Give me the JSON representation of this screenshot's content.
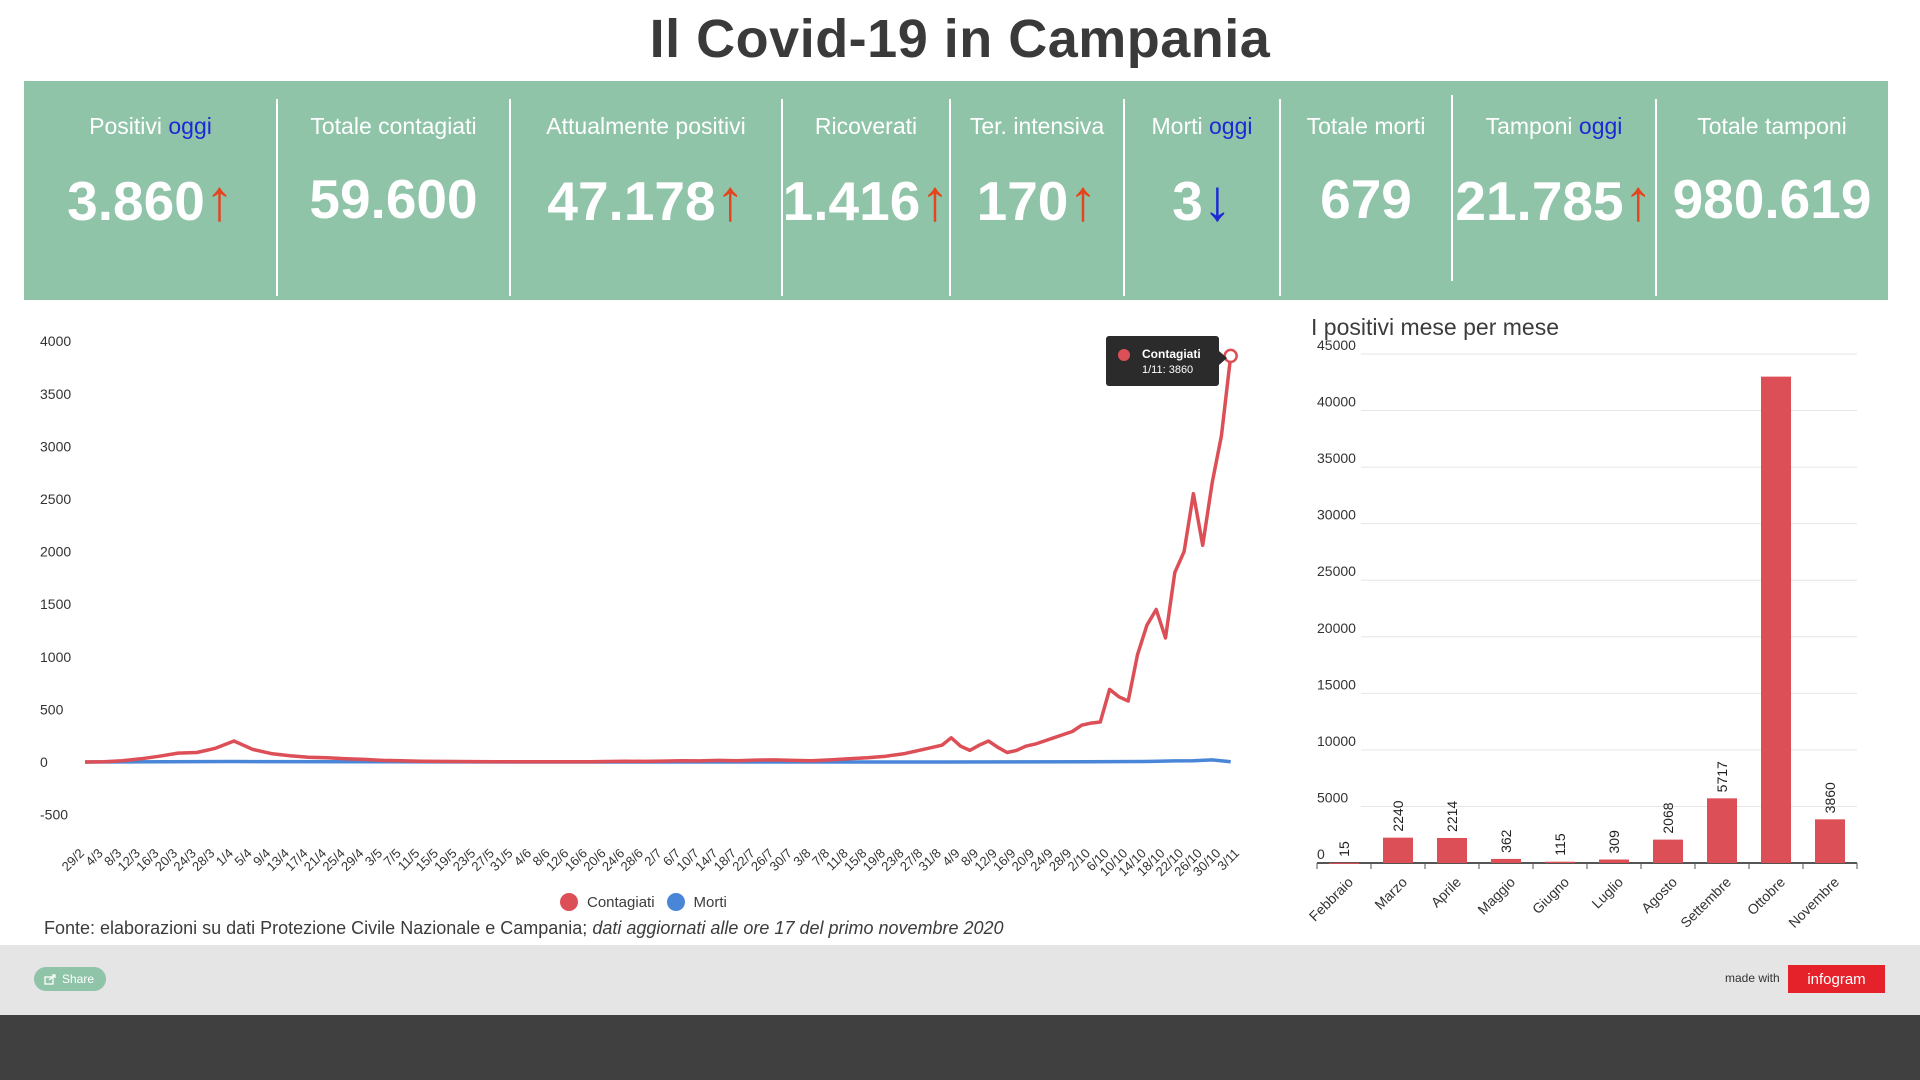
{
  "title": "Il Covid-19 in Campania",
  "kpis": [
    {
      "label": "Positivi ",
      "highlight": "oggi",
      "value": "3.860",
      "arrow": "↑",
      "dir": "up"
    },
    {
      "label": "Totale contagiati",
      "highlight": "",
      "value": "59.600",
      "arrow": "",
      "dir": ""
    },
    {
      "label": "Attualmente positivi",
      "highlight": "",
      "value": "47.178",
      "arrow": "↑",
      "dir": "up"
    },
    {
      "label": "Ricoverati",
      "highlight": "",
      "value": "1.416",
      "arrow": "↑",
      "dir": "up"
    },
    {
      "label": "Ter. intensiva",
      "highlight": "",
      "value": "170",
      "arrow": "↑",
      "dir": "up"
    },
    {
      "label": "Morti ",
      "highlight": "oggi",
      "value": "3",
      "arrow": "↓",
      "dir": "down"
    },
    {
      "label": "Totale morti",
      "highlight": "",
      "value": "679",
      "arrow": "",
      "dir": ""
    },
    {
      "label": "Tamponi ",
      "highlight": "oggi",
      "value": "21.785",
      "arrow": "↑",
      "dir": "up"
    },
    {
      "label": "Totale tamponi",
      "highlight": "",
      "value": "980.619",
      "arrow": "",
      "dir": ""
    }
  ],
  "colors": {
    "band": "#8fc4a8",
    "contagiati": "#dd4f57",
    "morti": "#4a86d8",
    "up_arrow": "#e5441f",
    "down_arrow": "#1d28d6"
  },
  "chart_data": [
    {
      "type": "line",
      "title": "",
      "ylim": [
        -500,
        4000
      ],
      "yticks": [
        4000,
        3500,
        3000,
        2500,
        2000,
        1500,
        1000,
        500,
        0,
        -500
      ],
      "x_ticks": [
        "29/2",
        "4/3",
        "8/3",
        "12/3",
        "16/3",
        "20/3",
        "24/3",
        "28/3",
        "1/4",
        "5/4",
        "9/4",
        "13/4",
        "17/4",
        "21/4",
        "25/4",
        "29/4",
        "3/5",
        "7/5",
        "11/5",
        "15/5",
        "19/5",
        "23/5",
        "27/5",
        "31/5",
        "4/6",
        "8/6",
        "12/6",
        "16/6",
        "20/6",
        "24/6",
        "28/6",
        "2/7",
        "6/7",
        "10/7",
        "14/7",
        "18/7",
        "22/7",
        "26/7",
        "30/7",
        "3/8",
        "7/8",
        "11/8",
        "15/8",
        "19/8",
        "23/8",
        "27/8",
        "31/8",
        "4/9",
        "8/9",
        "12/9",
        "16/9",
        "20/9",
        "24/9",
        "28/9",
        "2/10",
        "6/10",
        "10/10",
        "14/10",
        "18/10",
        "22/10",
        "26/10",
        "30/10",
        "3/11"
      ],
      "series": [
        {
          "name": "Contagiati",
          "points": [
            [
              "29/2",
              0
            ],
            [
              "4/3",
              3
            ],
            [
              "8/3",
              12
            ],
            [
              "12/3",
              30
            ],
            [
              "16/3",
              55
            ],
            [
              "20/3",
              85
            ],
            [
              "24/3",
              90
            ],
            [
              "28/3",
              130
            ],
            [
              "1/4",
              200
            ],
            [
              "3/4",
              160
            ],
            [
              "5/4",
              120
            ],
            [
              "9/4",
              80
            ],
            [
              "13/4",
              60
            ],
            [
              "17/4",
              45
            ],
            [
              "21/4",
              40
            ],
            [
              "25/4",
              30
            ],
            [
              "29/4",
              25
            ],
            [
              "3/5",
              15
            ],
            [
              "7/5",
              12
            ],
            [
              "11/5",
              8
            ],
            [
              "15/5",
              6
            ],
            [
              "19/5",
              5
            ],
            [
              "23/5",
              4
            ],
            [
              "27/5",
              3
            ],
            [
              "31/5",
              3
            ],
            [
              "4/6",
              2
            ],
            [
              "8/6",
              3
            ],
            [
              "12/6",
              2
            ],
            [
              "16/6",
              3
            ],
            [
              "20/6",
              5
            ],
            [
              "24/6",
              8
            ],
            [
              "28/6",
              6
            ],
            [
              "2/7",
              9
            ],
            [
              "6/7",
              12
            ],
            [
              "10/7",
              10
            ],
            [
              "14/7",
              15
            ],
            [
              "18/7",
              12
            ],
            [
              "22/7",
              18
            ],
            [
              "26/7",
              20
            ],
            [
              "30/7",
              15
            ],
            [
              "3/8",
              12
            ],
            [
              "7/8",
              20
            ],
            [
              "11/8",
              30
            ],
            [
              "15/8",
              40
            ],
            [
              "19/8",
              55
            ],
            [
              "23/8",
              80
            ],
            [
              "27/8",
              120
            ],
            [
              "31/8",
              160
            ],
            [
              "2/9",
              230
            ],
            [
              "4/9",
              150
            ],
            [
              "6/9",
              110
            ],
            [
              "8/9",
              160
            ],
            [
              "10/9",
              200
            ],
            [
              "12/9",
              140
            ],
            [
              "14/9",
              90
            ],
            [
              "16/9",
              110
            ],
            [
              "18/9",
              150
            ],
            [
              "20/9",
              170
            ],
            [
              "22/9",
              200
            ],
            [
              "24/9",
              230
            ],
            [
              "26/9",
              260
            ],
            [
              "28/9",
              290
            ],
            [
              "30/9",
              350
            ],
            [
              "2/10",
              370
            ],
            [
              "4/10",
              380
            ],
            [
              "6/10",
              690
            ],
            [
              "8/10",
              620
            ],
            [
              "10/10",
              580
            ],
            [
              "12/10",
              1020
            ],
            [
              "14/10",
              1300
            ],
            [
              "16/10",
              1450
            ],
            [
              "18/10",
              1180
            ],
            [
              "20/10",
              1800
            ],
            [
              "22/10",
              2000
            ],
            [
              "24/10",
              2550
            ],
            [
              "26/10",
              2060
            ],
            [
              "28/10",
              2650
            ],
            [
              "30/10",
              3100
            ],
            [
              "1/11",
              3860
            ]
          ]
        },
        {
          "name": "Morti",
          "points": [
            [
              "29/2",
              0
            ],
            [
              "1/4",
              5
            ],
            [
              "5/4",
              4
            ],
            [
              "1/5",
              2
            ],
            [
              "1/6",
              0
            ],
            [
              "1/7",
              0
            ],
            [
              "1/8",
              0
            ],
            [
              "1/9",
              0
            ],
            [
              "1/10",
              2
            ],
            [
              "15/10",
              6
            ],
            [
              "20/10",
              10
            ],
            [
              "24/10",
              12
            ],
            [
              "28/10",
              20
            ],
            [
              "1/11",
              3
            ]
          ]
        }
      ],
      "tooltip": {
        "series": "Contagiati",
        "text": "1/11: 3860"
      }
    },
    {
      "type": "bar",
      "title": "I positivi mese per mese",
      "ylim": [
        0,
        45000
      ],
      "yticks": [
        45000,
        40000,
        35000,
        30000,
        25000,
        20000,
        15000,
        10000,
        5000,
        0
      ],
      "categories": [
        "Febbraio",
        "Marzo",
        "Aprile",
        "Maggio",
        "Giugno",
        "Luglio",
        "Agosto",
        "Settembre",
        "Ottobre",
        "Novembre"
      ],
      "values": [
        15,
        2240,
        2214,
        362,
        115,
        309,
        2068,
        5717,
        43000,
        3860
      ],
      "labels": [
        "15",
        "2240",
        "2214",
        "362",
        "115",
        "309",
        "2068",
        "5717",
        "",
        "3860"
      ]
    }
  ],
  "legend": [
    {
      "name": "Contagiati"
    },
    {
      "name": "Morti"
    }
  ],
  "source": {
    "text": "Fonte: elaborazioni su dati Protezione Civile Nazionale e Campania; ",
    "italic": "dati aggiornati alle ore 17 del primo novembre 2020"
  },
  "footer": {
    "share_label": "Share",
    "made_with": "made with",
    "logo_text": "infogram"
  }
}
